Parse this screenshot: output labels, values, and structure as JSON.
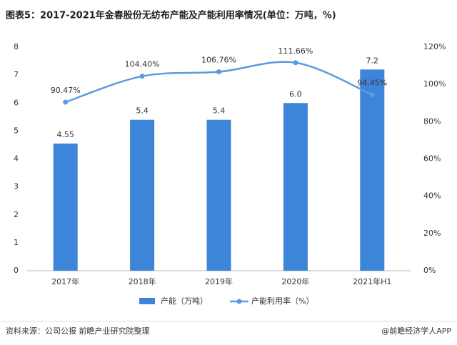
{
  "chart_data": {
    "type": "bar",
    "title": "图表5：2017-2021年金春股份无纺布产能及产能利用率情况(单位：万吨，%)",
    "categories": [
      "2017年",
      "2018年",
      "2019年",
      "2020年",
      "2021年H1"
    ],
    "series": [
      {
        "name": "产能（万吨）",
        "type": "bar",
        "color": "#3d85d8",
        "values": [
          4.55,
          5.4,
          5.4,
          6.0,
          7.2
        ],
        "value_labels": [
          "4.55",
          "5.4",
          "5.4",
          "6.0",
          "7.2"
        ]
      },
      {
        "name": "产能利用率（%）",
        "type": "line",
        "axis": "y2",
        "color": "#5b9ae0",
        "values": [
          90.47,
          104.4,
          106.76,
          111.66,
          94.45
        ],
        "value_labels": [
          "90.47%",
          "104.40%",
          "106.76%",
          "111.66%",
          "94.45%"
        ]
      }
    ],
    "ylim": [
      0,
      8
    ],
    "yticks": [
      0,
      1,
      2,
      3,
      4,
      5,
      6,
      7,
      8
    ],
    "y2lim": [
      0,
      120
    ],
    "y2ticks": [
      {
        "value": 0,
        "label": "0%"
      },
      {
        "value": 20,
        "label": "20%"
      },
      {
        "value": 40,
        "label": "40%"
      },
      {
        "value": 60,
        "label": "60%"
      },
      {
        "value": 80,
        "label": "80%"
      },
      {
        "value": 100,
        "label": "100%"
      },
      {
        "value": 120,
        "label": "120%"
      }
    ],
    "source": "资料来源：公司公报 前瞻产业研究院整理",
    "credit": "@前瞻经济学人APP"
  }
}
